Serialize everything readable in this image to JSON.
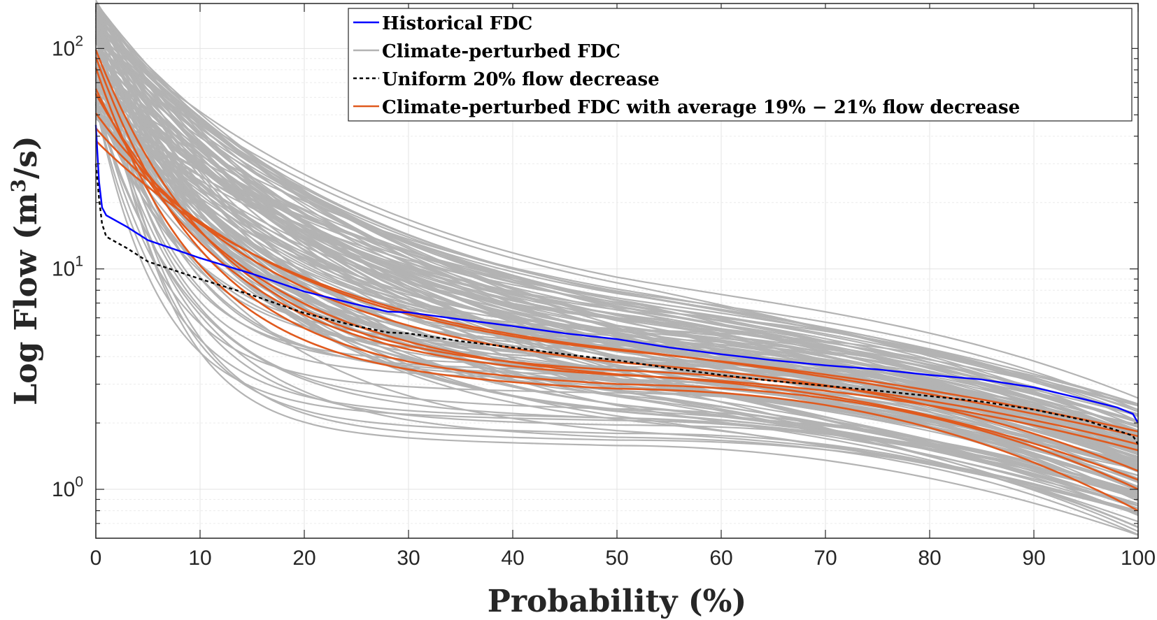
{
  "chart_data": {
    "type": "line",
    "xlabel": "Probability (%)",
    "ylabel_main": "Log Flow (m",
    "ylabel_sup": "3",
    "ylabel_tail": "/s)",
    "y_scale": "log",
    "xlim": [
      0,
      100
    ],
    "ylim": [
      0.6,
      160
    ],
    "x_ticks": [
      0,
      10,
      20,
      30,
      40,
      50,
      60,
      70,
      80,
      90,
      100
    ],
    "y_ticks": [
      {
        "value": 1,
        "base": "10",
        "exp": "0"
      },
      {
        "value": 10,
        "base": "10",
        "exp": "1"
      },
      {
        "value": 100,
        "base": "10",
        "exp": "2"
      }
    ],
    "grid": true,
    "legend_position": "top-right",
    "colors": {
      "historical": "#0000ff",
      "perturbed": "#b3b3b3",
      "uniform": "#000000",
      "selected": "#e05a1e"
    },
    "legend": [
      {
        "label": "Historical FDC",
        "color": "#0000ff",
        "style": "solid"
      },
      {
        "label": "Climate-perturbed FDC",
        "color": "#b3b3b3",
        "style": "solid"
      },
      {
        "label": "Uniform 20% flow decrease",
        "color": "#000000",
        "style": "dashed"
      },
      {
        "label": "Climate-perturbed FDC with average 19% − 21% flow decrease",
        "color": "#e05a1e",
        "style": "solid"
      }
    ],
    "series": [
      {
        "name": "Historical FDC",
        "color": "#0000ff",
        "style": "solid",
        "points": [
          [
            0,
            45
          ],
          [
            0.3,
            25
          ],
          [
            0.6,
            19
          ],
          [
            1,
            17.5
          ],
          [
            3,
            15.5
          ],
          [
            5,
            13.5
          ],
          [
            10,
            11.2
          ],
          [
            15,
            9.5
          ],
          [
            20,
            7.9
          ],
          [
            25,
            6.9
          ],
          [
            28,
            6.4
          ],
          [
            30,
            6.35
          ],
          [
            35,
            5.9
          ],
          [
            40,
            5.5
          ],
          [
            45,
            5.1
          ],
          [
            50,
            4.8
          ],
          [
            55,
            4.4
          ],
          [
            60,
            4.1
          ],
          [
            65,
            3.85
          ],
          [
            70,
            3.65
          ],
          [
            75,
            3.5
          ],
          [
            80,
            3.3
          ],
          [
            85,
            3.15
          ],
          [
            90,
            2.9
          ],
          [
            95,
            2.55
          ],
          [
            98,
            2.35
          ],
          [
            99.5,
            2.2
          ],
          [
            100,
            2.0
          ]
        ]
      },
      {
        "name": "Uniform 20% flow decrease",
        "color": "#000000",
        "style": "dashed",
        "points": [
          [
            0,
            30
          ],
          [
            0.3,
            21
          ],
          [
            0.6,
            16
          ],
          [
            1,
            14
          ],
          [
            3,
            12.4
          ],
          [
            5,
            10.8
          ],
          [
            10,
            9.0
          ],
          [
            15,
            7.6
          ],
          [
            20,
            6.3
          ],
          [
            25,
            5.5
          ],
          [
            28,
            5.15
          ],
          [
            30,
            5.1
          ],
          [
            35,
            4.7
          ],
          [
            40,
            4.4
          ],
          [
            45,
            4.1
          ],
          [
            50,
            3.85
          ],
          [
            55,
            3.55
          ],
          [
            60,
            3.3
          ],
          [
            65,
            3.1
          ],
          [
            70,
            2.95
          ],
          [
            75,
            2.8
          ],
          [
            80,
            2.65
          ],
          [
            85,
            2.5
          ],
          [
            90,
            2.3
          ],
          [
            95,
            2.05
          ],
          [
            98,
            1.85
          ],
          [
            99.5,
            1.75
          ],
          [
            100,
            1.6
          ]
        ]
      }
    ],
    "perturbed_ensemble": {
      "name": "Climate-perturbed FDC",
      "color": "#b3b3b3",
      "count": 140,
      "q0_range": [
        25,
        150
      ],
      "q50_range": [
        1.5,
        5.2
      ],
      "q100_range": [
        0.62,
        2.6
      ],
      "recession_shape_range": [
        0.06,
        0.35
      ]
    },
    "selected_curves": {
      "name": "Climate-perturbed FDC with average 19% − 21% flow decrease",
      "color": "#e05a1e",
      "curves": [
        {
          "q0": 90,
          "q50": 3.3,
          "q100": 1.6,
          "k": 0.12,
          "t": 0.9
        },
        {
          "q0": 55,
          "q50": 3.0,
          "q100": 1.1,
          "k": 0.15,
          "t": 1.1
        },
        {
          "q0": 40,
          "q50": 3.5,
          "q100": 1.8,
          "k": 0.2,
          "t": 0.8
        },
        {
          "q0": 70,
          "q50": 2.8,
          "q100": 0.8,
          "k": 0.1,
          "t": 1.3
        },
        {
          "q0": 60,
          "q50": 3.1,
          "q100": 1.5,
          "k": 0.13,
          "t": 1.0
        },
        {
          "q0": 45,
          "q50": 3.2,
          "q100": 1.2,
          "k": 0.18,
          "t": 1.2
        },
        {
          "q0": 35,
          "q50": 3.4,
          "q100": 1.7,
          "k": 0.22,
          "t": 0.7
        },
        {
          "q0": 80,
          "q50": 2.9,
          "q100": 1.0,
          "k": 0.11,
          "t": 1.4
        }
      ]
    }
  }
}
